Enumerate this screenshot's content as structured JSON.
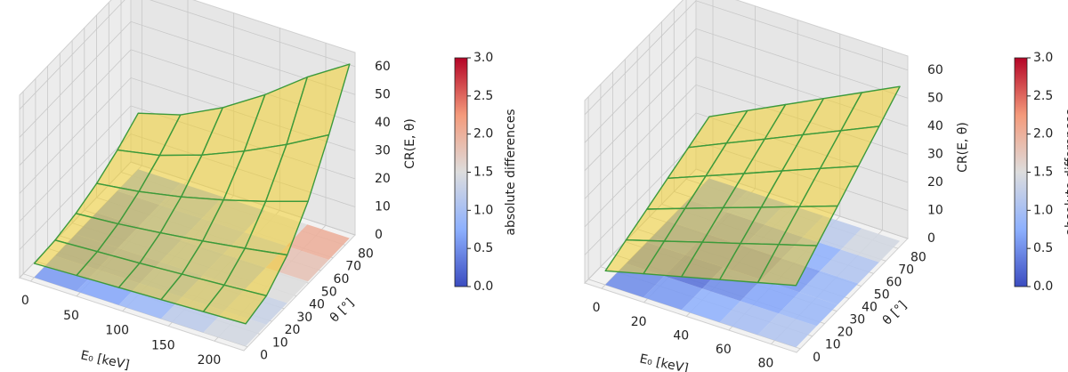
{
  "chart_data": [
    {
      "type": "surface3d",
      "xlabel": "E₀ [keV]",
      "ylabel": "θ [°]",
      "zlabel": "CR(E, θ)",
      "xlim": [
        -12,
        232
      ],
      "ylim": [
        -3,
        88
      ],
      "zlim": [
        0,
        65
      ],
      "xticks": [
        0,
        50,
        100,
        150,
        200
      ],
      "yticks": [
        0,
        10,
        20,
        30,
        40,
        50,
        60,
        70,
        80
      ],
      "zticks": [
        0,
        10,
        20,
        30,
        40,
        50,
        60
      ],
      "x": [
        0,
        46,
        92,
        138,
        184,
        230
      ],
      "y": [
        0,
        17,
        34,
        51,
        68,
        85
      ],
      "z": [
        [
          5,
          5.6,
          6.2,
          6.8,
          7.4,
          8
        ],
        [
          5.6,
          6.4,
          7.2,
          8.2,
          9.2,
          10.3
        ],
        [
          7.4,
          8.6,
          10.3,
          12.3,
          14.6,
          17.1
        ],
        [
          10.4,
          12.4,
          15.4,
          19.2,
          23.6,
          28.5
        ],
        [
          14.6,
          17.6,
          22.6,
          28.9,
          36.2,
          44.5
        ],
        [
          20,
          24.3,
          31.8,
          41.3,
          52.5,
          62
        ]
      ],
      "surface_color": "#f2cf2e",
      "wire_color": "#3c9a3c",
      "diff": [
        [
          0.6,
          0.7,
          0.9,
          1.2,
          1.4
        ],
        [
          0.5,
          0.6,
          0.8,
          1.1,
          1.3
        ],
        [
          0.5,
          0.7,
          0.9,
          1.0,
          1.5
        ],
        [
          0.6,
          0.8,
          1.0,
          1.2,
          1.8
        ],
        [
          0.8,
          0.9,
          1.1,
          1.5,
          2.0
        ]
      ],
      "colorbar": {
        "label": "absolute differences",
        "colormap": "coolwarm",
        "clim": [
          0,
          3
        ],
        "ticks": [
          {
            "value": 0,
            "label": "0.0"
          },
          {
            "value": 0.5,
            "label": "0.5"
          },
          {
            "value": 1,
            "label": "1.0"
          },
          {
            "value": 1.5,
            "label": "1.5"
          },
          {
            "value": 2,
            "label": "2.0"
          },
          {
            "value": 2.5,
            "label": "2.5"
          },
          {
            "value": 3,
            "label": "3.0"
          }
        ]
      }
    },
    {
      "type": "surface3d",
      "xlabel": "E₀ [keV]",
      "ylabel": "θ [°]",
      "zlabel": "CR(E, θ)",
      "xlim": [
        -8,
        92
      ],
      "ylim": [
        -3,
        88
      ],
      "zlim": [
        0,
        65
      ],
      "xticks": [
        0,
        20,
        40,
        60,
        80
      ],
      "yticks": [
        0,
        10,
        20,
        30,
        40,
        50,
        60,
        70,
        80
      ],
      "zticks": [
        0,
        10,
        20,
        30,
        40,
        50,
        60
      ],
      "x": [
        0,
        18,
        36,
        54,
        72,
        90
      ],
      "y": [
        0,
        17,
        34,
        51,
        68,
        85
      ],
      "z": [
        [
          5,
          8.4,
          11.8,
          15.2,
          18.6,
          22
        ],
        [
          8.4,
          12.4,
          16.5,
          20.5,
          24.6,
          28.6
        ],
        [
          11.8,
          16.5,
          21.2,
          25.8,
          30.5,
          35.2
        ],
        [
          15.2,
          20.5,
          25.8,
          31.2,
          36.5,
          41.8
        ],
        [
          18.6,
          24.6,
          30.5,
          36.5,
          42.4,
          48.4
        ],
        [
          22,
          28.6,
          35.2,
          41.8,
          48.4,
          55
        ]
      ],
      "surface_color": "#f2cf2e",
      "wire_color": "#3c9a3c",
      "diff": [
        [
          0.5,
          0.6,
          0.8,
          1.0,
          1.1
        ],
        [
          0.4,
          0.3,
          0.5,
          0.7,
          0.9
        ],
        [
          0.5,
          0.4,
          0.4,
          0.6,
          0.9
        ],
        [
          0.6,
          0.5,
          0.6,
          0.8,
          1.1
        ],
        [
          0.7,
          0.8,
          1.0,
          1.2,
          1.4
        ]
      ],
      "colorbar": {
        "label": "absolute differences",
        "colormap": "coolwarm",
        "clim": [
          0,
          3
        ],
        "ticks": [
          {
            "value": 0,
            "label": "0.0"
          },
          {
            "value": 0.5,
            "label": "0.5"
          },
          {
            "value": 1,
            "label": "1.0"
          },
          {
            "value": 1.5,
            "label": "1.5"
          },
          {
            "value": 2,
            "label": "2.0"
          },
          {
            "value": 2.5,
            "label": "2.5"
          },
          {
            "value": 3,
            "label": "3.0"
          }
        ]
      }
    }
  ]
}
